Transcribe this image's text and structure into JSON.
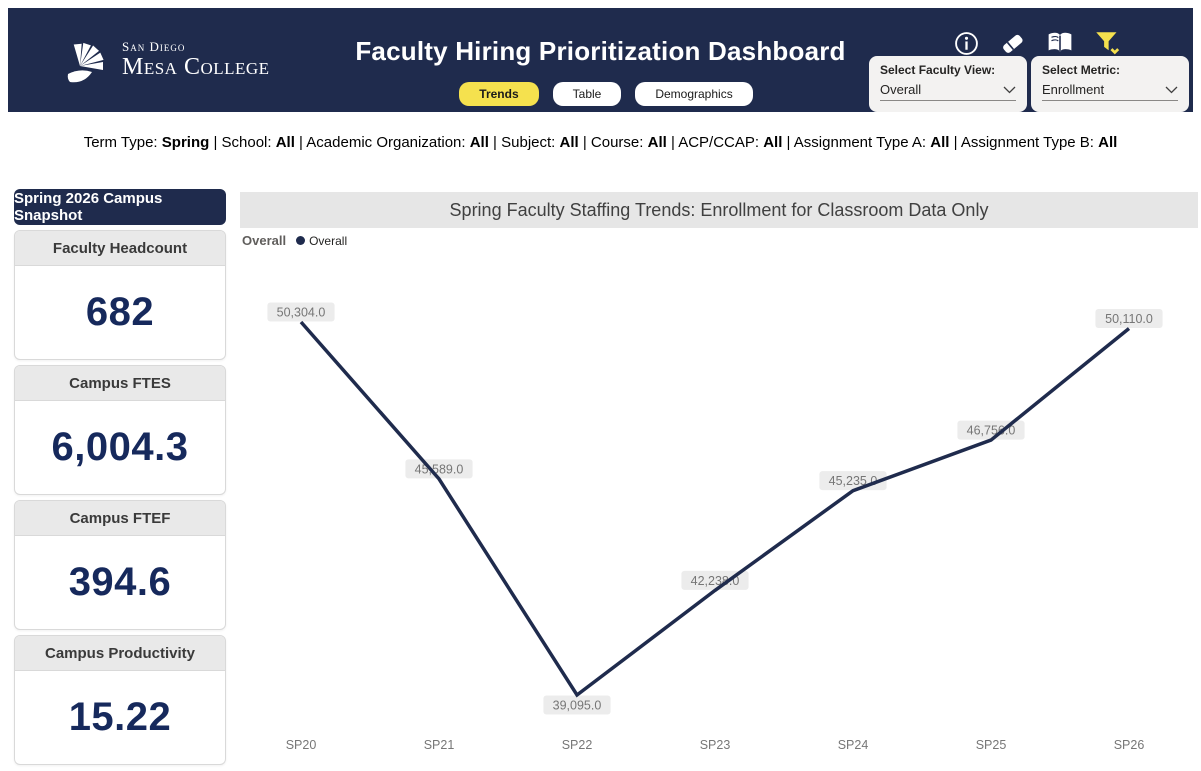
{
  "header": {
    "logo": {
      "line1": "San Diego",
      "line2": "Mesa College"
    },
    "title": "Faculty Hiring Prioritization Dashboard",
    "tabs": [
      {
        "label": "Trends",
        "active": true
      },
      {
        "label": "Table",
        "active": false
      },
      {
        "label": "Demographics",
        "active": false
      }
    ],
    "icons": [
      "info-icon",
      "eraser-icon",
      "book-icon",
      "filter-icon"
    ],
    "slicers": [
      {
        "label": "Select Faculty View:",
        "value": "Overall"
      },
      {
        "label": "Select Metric:",
        "value": "Enrollment"
      }
    ]
  },
  "filter_bar": {
    "items": [
      {
        "label": "Term Type",
        "value": "Spring"
      },
      {
        "label": "School",
        "value": "All"
      },
      {
        "label": "Academic Organization",
        "value": "All"
      },
      {
        "label": "Subject",
        "value": "All"
      },
      {
        "label": "Course",
        "value": "All"
      },
      {
        "label": "ACP/CCAP",
        "value": "All"
      },
      {
        "label": "Assignment Type A",
        "value": "All"
      },
      {
        "label": "Assignment Type B",
        "value": "All"
      }
    ]
  },
  "sidebar": {
    "snapshot_title": "Spring 2026 Campus Snapshot",
    "kpis": [
      {
        "label": "Faculty Headcount",
        "value": "682"
      },
      {
        "label": "Campus FTES",
        "value": "6,004.3"
      },
      {
        "label": "Campus FTEF",
        "value": "394.6"
      },
      {
        "label": "Campus Productivity",
        "value": "15.22"
      }
    ]
  },
  "chart": {
    "title": "Spring Faculty Staffing Trends: Enrollment for Classroom Data Only",
    "legend_group": "Overall",
    "legend_item": "Overall"
  },
  "chart_data": {
    "type": "line",
    "title": "Spring Faculty Staffing Trends: Enrollment for Classroom Data Only",
    "categories": [
      "SP20",
      "SP21",
      "SP22",
      "SP23",
      "SP24",
      "SP25",
      "SP26"
    ],
    "series": [
      {
        "name": "Overall",
        "values": [
          50304,
          45589,
          39095,
          42238,
          45235,
          46756,
          50110
        ]
      }
    ],
    "data_labels": [
      "50,304.0",
      "45,589.0",
      "39,095.0",
      "42,238.0",
      "45,235.0",
      "46,756.0",
      "50,110.0"
    ],
    "xlabel": "",
    "ylabel": "",
    "ylim": [
      38000,
      51500
    ],
    "grid": false,
    "legend_position": "top-left",
    "line_color": "#1f2b4d",
    "label_bg": "#ececec",
    "label_text_color": "#767676"
  },
  "colors": {
    "header_navy": "#1f2b4d",
    "accent_yellow": "#f5e14e",
    "kpi_number": "#16295c",
    "card_header_bg": "#e9e9e9",
    "banner_bg": "#e6e6e6"
  }
}
